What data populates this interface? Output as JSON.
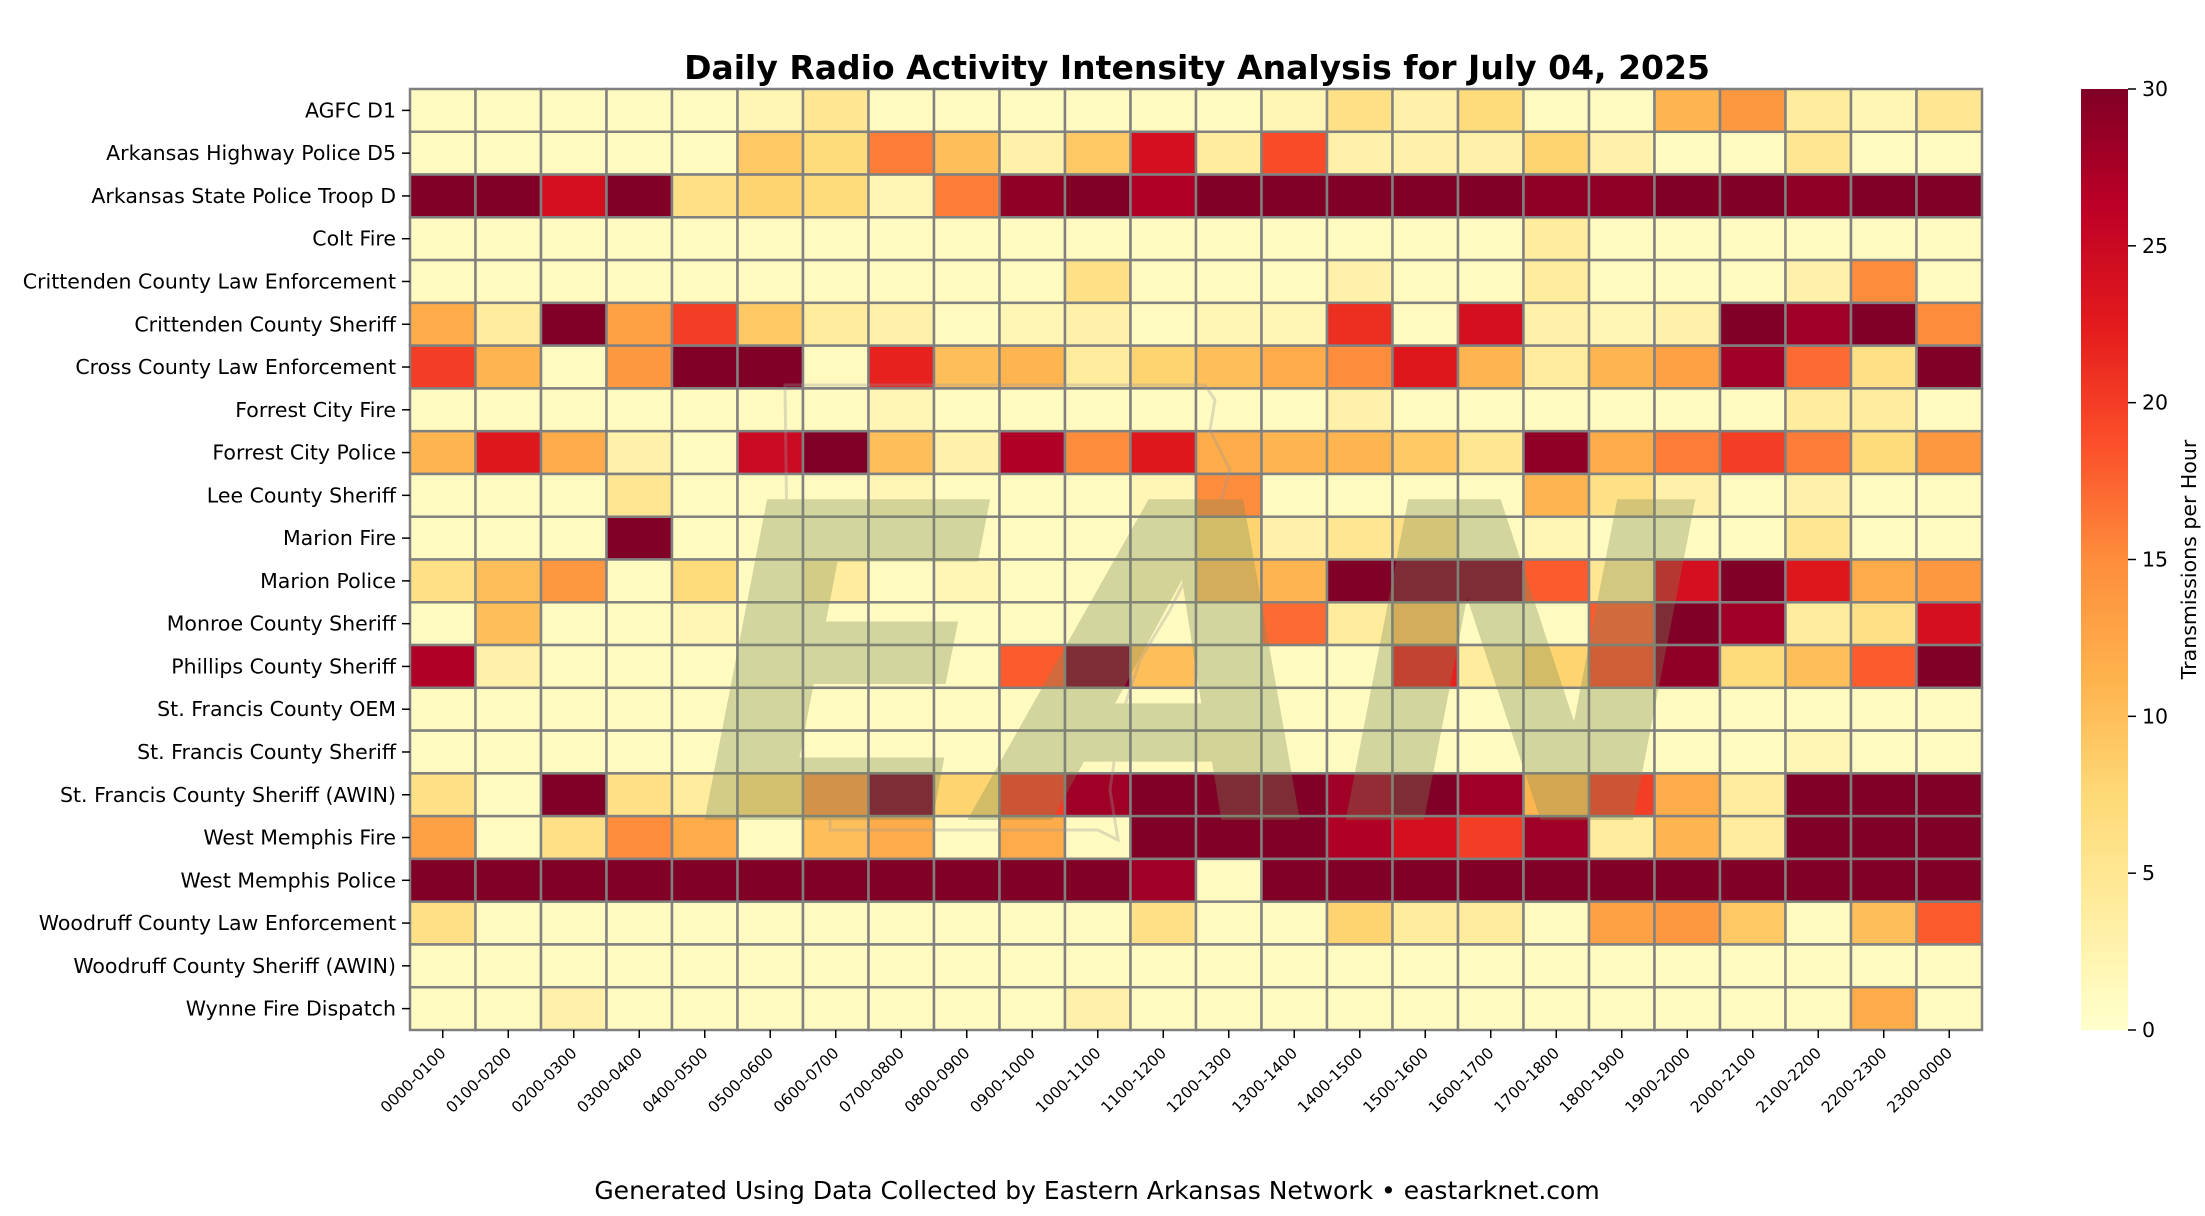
{
  "chart_data": {
    "type": "heatmap",
    "title": "Daily Radio Activity Intensity Analysis for July 04, 2025",
    "footer": "Generated Using Data Collected by Eastern Arkansas Network • eastarknet.com",
    "colorbar_label": "Transmissions per Hour",
    "colorbar_ticks": [
      "0",
      "5",
      "10",
      "15",
      "20",
      "25",
      "30"
    ],
    "vmin": 0,
    "vmax": 30,
    "colormap": [
      "#ffffcc",
      "#ffeda0",
      "#fed976",
      "#feb24c",
      "#fd8d3c",
      "#fc4e2a",
      "#e31a1c",
      "#bd0026",
      "#800026"
    ],
    "grid_line_color": "#808080",
    "watermark_text": "EAN",
    "columns": [
      "0000-0100",
      "0100-0200",
      "0200-0300",
      "0300-0400",
      "0400-0500",
      "0500-0600",
      "0600-0700",
      "0700-0800",
      "0800-0900",
      "0900-1000",
      "1000-1100",
      "1100-1200",
      "1200-1300",
      "1300-1400",
      "1400-1500",
      "1500-1600",
      "1600-1700",
      "1700-1800",
      "1800-1900",
      "1900-2000",
      "2000-2100",
      "2100-2200",
      "2200-2300",
      "2300-0000"
    ],
    "rows": [
      {
        "name": "AGFC D1",
        "values": [
          1,
          1,
          1,
          1,
          1,
          2,
          5,
          1,
          1,
          1,
          1,
          1,
          1,
          2,
          6,
          3,
          7,
          1,
          1,
          11,
          14,
          4,
          2,
          5
        ]
      },
      {
        "name": "Arkansas Highway Police D5",
        "values": [
          1,
          1,
          1,
          1,
          1,
          9,
          7,
          16,
          10,
          3,
          9,
          24,
          4,
          19,
          3,
          3,
          3,
          8,
          3,
          1,
          1,
          5,
          1,
          1
        ]
      },
      {
        "name": "Arkansas State Police Troop D",
        "values": [
          30,
          30,
          24,
          30,
          6,
          8,
          7,
          2,
          16,
          29,
          30,
          27,
          30,
          30,
          30,
          30,
          30,
          29,
          29,
          30,
          30,
          29,
          30,
          30
        ]
      },
      {
        "name": "Colt Fire",
        "values": [
          1,
          1,
          1,
          1,
          1,
          1,
          1,
          1,
          1,
          1,
          1,
          1,
          1,
          1,
          1,
          1,
          1,
          4,
          1,
          1,
          1,
          1,
          1,
          1
        ]
      },
      {
        "name": "Crittenden County Law Enforcement",
        "values": [
          1,
          1,
          1,
          1,
          1,
          1,
          1,
          1,
          1,
          1,
          6,
          1,
          1,
          1,
          3,
          1,
          1,
          4,
          1,
          1,
          1,
          3,
          15,
          1
        ]
      },
      {
        "name": "Crittenden County Sheriff",
        "values": [
          12,
          4,
          30,
          13,
          20,
          9,
          4,
          3,
          1,
          2,
          3,
          1,
          2,
          2,
          21,
          1,
          24,
          3,
          2,
          3,
          30,
          28,
          30,
          15
        ]
      },
      {
        "name": "Cross County Law Enforcement",
        "values": [
          20,
          11,
          1,
          14,
          30,
          30,
          1,
          22,
          10,
          11,
          4,
          8,
          10,
          12,
          15,
          23,
          11,
          4,
          11,
          13,
          28,
          17,
          6,
          30
        ]
      },
      {
        "name": "Forrest City Fire",
        "values": [
          1,
          1,
          1,
          1,
          1,
          1,
          1,
          2,
          1,
          1,
          1,
          1,
          1,
          1,
          3,
          1,
          1,
          1,
          1,
          1,
          1,
          4,
          4,
          1
        ]
      },
      {
        "name": "Forrest City Police",
        "values": [
          11,
          23,
          12,
          3,
          1,
          25,
          30,
          10,
          3,
          27,
          15,
          23,
          12,
          11,
          11,
          9,
          5,
          29,
          12,
          16,
          20,
          16,
          7,
          14
        ]
      },
      {
        "name": "Lee County Sheriff",
        "values": [
          1,
          1,
          1,
          5,
          1,
          1,
          1,
          2,
          1,
          1,
          1,
          2,
          15,
          1,
          1,
          1,
          1,
          11,
          6,
          3,
          1,
          3,
          1,
          1
        ]
      },
      {
        "name": "Marion Fire",
        "values": [
          1,
          1,
          1,
          30,
          1,
          1,
          1,
          1,
          1,
          1,
          1,
          1,
          8,
          3,
          5,
          6,
          1,
          2,
          1,
          1,
          1,
          5,
          1,
          1
        ]
      },
      {
        "name": "Marion Police",
        "values": [
          6,
          10,
          14,
          1,
          7,
          1,
          4,
          1,
          2,
          1,
          1,
          2,
          10,
          11,
          30,
          30,
          30,
          18,
          5,
          24,
          30,
          23,
          12,
          14
        ]
      },
      {
        "name": "Monroe County Sheriff",
        "values": [
          1,
          10,
          1,
          1,
          2,
          1,
          1,
          1,
          1,
          1,
          1,
          1,
          1,
          17,
          4,
          10,
          1,
          1,
          18,
          30,
          28,
          4,
          6,
          24
        ]
      },
      {
        "name": "Phillips County Sheriff",
        "values": [
          27,
          3,
          1,
          1,
          1,
          1,
          1,
          1,
          1,
          18,
          30,
          10,
          1,
          1,
          1,
          22,
          4,
          8,
          19,
          29,
          7,
          10,
          18,
          30
        ]
      },
      {
        "name": "St. Francis County OEM",
        "values": [
          1,
          1,
          1,
          1,
          1,
          1,
          1,
          1,
          1,
          1,
          1,
          1,
          1,
          1,
          1,
          1,
          1,
          1,
          1,
          1,
          1,
          1,
          1,
          1
        ]
      },
      {
        "name": "St. Francis County Sheriff",
        "values": [
          1,
          1,
          1,
          1,
          1,
          1,
          1,
          1,
          1,
          1,
          1,
          1,
          2,
          1,
          1,
          1,
          1,
          1,
          1,
          1,
          1,
          2,
          1,
          1
        ]
      },
      {
        "name": "St. Francis County Sheriff (AWIN)",
        "values": [
          6,
          1,
          30,
          6,
          4,
          7,
          14,
          30,
          8,
          20,
          28,
          30,
          30,
          30,
          28,
          30,
          28,
          11,
          20,
          12,
          4,
          30,
          30,
          30
        ]
      },
      {
        "name": "West Memphis Fire",
        "values": [
          13,
          1,
          6,
          15,
          12,
          1,
          10,
          12,
          1,
          12,
          1,
          30,
          30,
          30,
          27,
          24,
          20,
          28,
          4,
          11,
          4,
          30,
          30,
          30
        ]
      },
      {
        "name": "West Memphis Police",
        "values": [
          30,
          30,
          30,
          30,
          30,
          30,
          30,
          30,
          30,
          30,
          30,
          28,
          1,
          30,
          30,
          30,
          30,
          30,
          30,
          30,
          30,
          30,
          30,
          30
        ]
      },
      {
        "name": "Woodruff County Law Enforcement",
        "values": [
          6,
          1,
          1,
          1,
          1,
          1,
          1,
          1,
          1,
          1,
          1,
          6,
          1,
          1,
          8,
          4,
          4,
          1,
          13,
          14,
          9,
          1,
          10,
          18
        ]
      },
      {
        "name": "Woodruff County Sheriff (AWIN)",
        "values": [
          1,
          1,
          1,
          1,
          1,
          1,
          1,
          1,
          1,
          1,
          1,
          1,
          1,
          1,
          1,
          1,
          1,
          1,
          1,
          1,
          1,
          1,
          1,
          1
        ]
      },
      {
        "name": "Wynne Fire Dispatch",
        "values": [
          1,
          1,
          3,
          1,
          1,
          1,
          1,
          1,
          1,
          1,
          3,
          1,
          1,
          1,
          1,
          1,
          1,
          1,
          1,
          1,
          1,
          1,
          12,
          1
        ]
      }
    ]
  }
}
